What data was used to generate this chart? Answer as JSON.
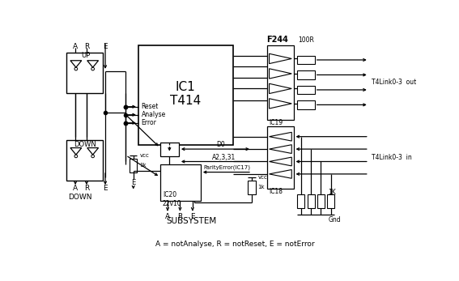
{
  "footnote": "A = notAnalyse, R = notReset, E = notError",
  "UP_label": "UP",
  "DOWN_label": "DOWN",
  "IC1_l1": "IC1",
  "IC1_l2": "T414",
  "Reset_label": "Reset",
  "Analyse_label": "Analyse",
  "Error_label": "Error",
  "F244_label": "F244",
  "100R_label": "100R",
  "IC19_label": "IC19",
  "IC18_label": "IC18",
  "T4out_label": "T4Link0-3  out",
  "T4in_label": "T4Link0-3  in",
  "1K_label": "1K",
  "Gnd_label": "Gnd",
  "IC20_l1": "IC20",
  "IC20_l2": "22v10",
  "D0_label": "D0",
  "A2331_label": "A2,3,31",
  "parity_label": "ParityError(IC17)",
  "vcc1_label": "vcc",
  "vcc2_label": "vcc",
  "1k1_label": "1k",
  "1k2_label": "1k",
  "SUBSYSTEM_label": "SUBSYSTEM"
}
